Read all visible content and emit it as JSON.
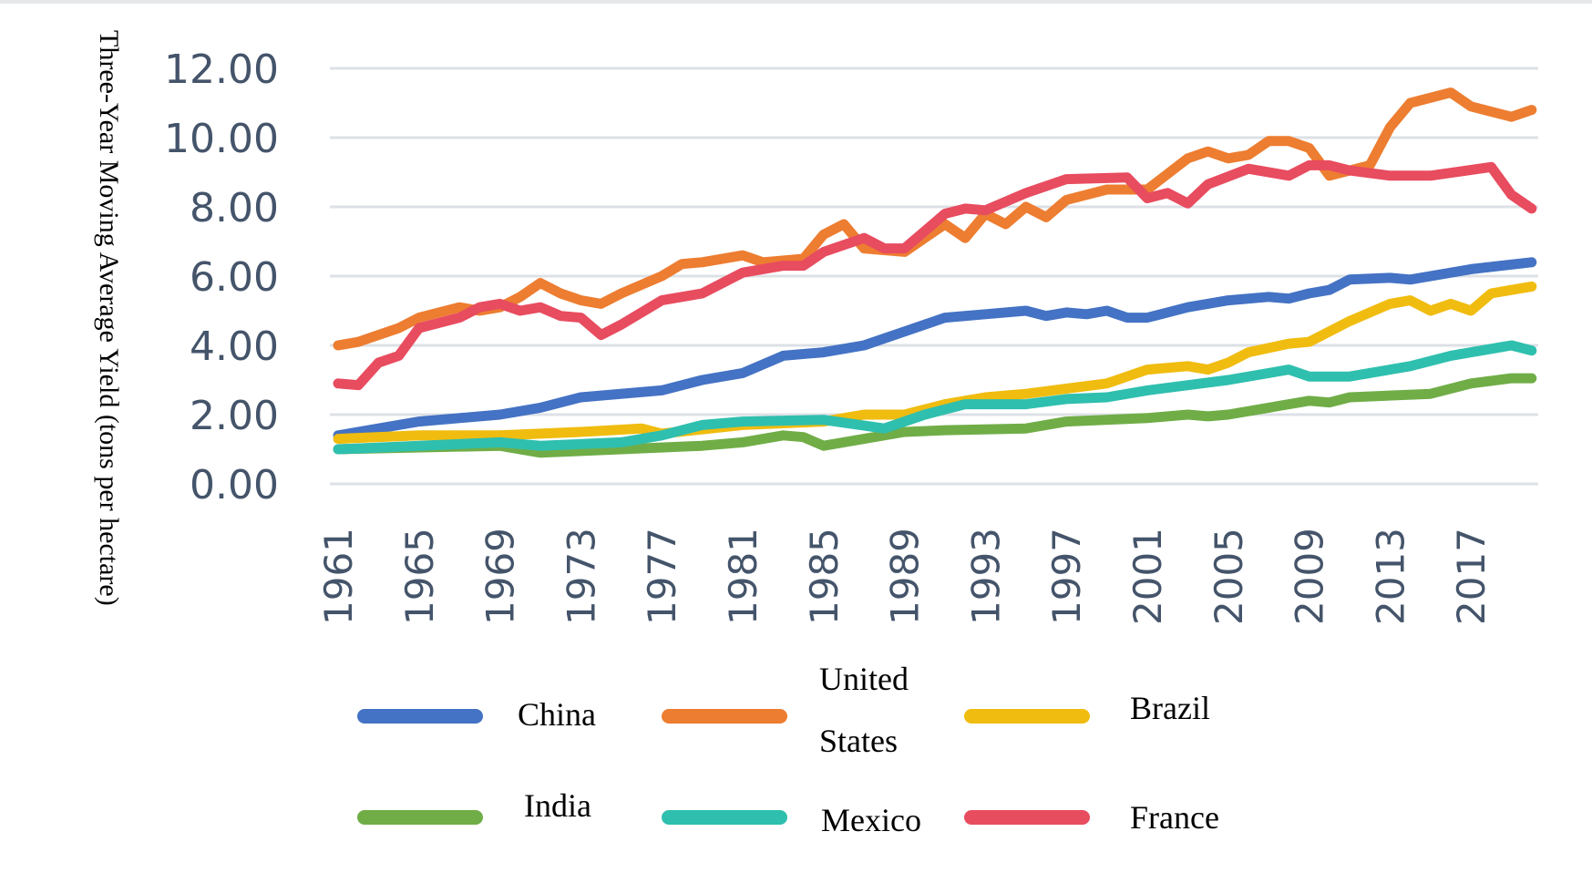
{
  "chart_data": {
    "type": "line",
    "title": "",
    "xlabel": "",
    "ylabel": "Three-Year Moving Average Yield (tons per hectare)",
    "ylim": [
      0,
      12
    ],
    "yticks": [
      "0.00",
      "2.00",
      "4.00",
      "6.00",
      "8.00",
      "10.00",
      "12.00"
    ],
    "xlim": [
      1961,
      2020
    ],
    "xticks": [
      "1961",
      "1965",
      "1969",
      "1973",
      "1977",
      "1981",
      "1985",
      "1989",
      "1993",
      "1997",
      "2001",
      "2005",
      "2009",
      "2013",
      "2017"
    ],
    "grid": true,
    "legend_placement": "bottom",
    "series": [
      {
        "name": "China",
        "color": "#4472c4",
        "points": [
          [
            1961,
            1.4
          ],
          [
            1965,
            1.8
          ],
          [
            1969,
            2.0
          ],
          [
            1971,
            2.2
          ],
          [
            1973,
            2.5
          ],
          [
            1977,
            2.7
          ],
          [
            1979,
            3.0
          ],
          [
            1981,
            3.2
          ],
          [
            1983,
            3.7
          ],
          [
            1985,
            3.8
          ],
          [
            1987,
            4.0
          ],
          [
            1989,
            4.4
          ],
          [
            1991,
            4.8
          ],
          [
            1993,
            4.9
          ],
          [
            1995,
            5.0
          ],
          [
            1996,
            4.85
          ],
          [
            1997,
            4.95
          ],
          [
            1998,
            4.9
          ],
          [
            1999,
            5.0
          ],
          [
            2000,
            4.8
          ],
          [
            2001,
            4.8
          ],
          [
            2003,
            5.1
          ],
          [
            2005,
            5.3
          ],
          [
            2007,
            5.4
          ],
          [
            2008,
            5.35
          ],
          [
            2009,
            5.5
          ],
          [
            2010,
            5.6
          ],
          [
            2011,
            5.9
          ],
          [
            2013,
            5.95
          ],
          [
            2014,
            5.9
          ],
          [
            2017,
            6.2
          ],
          [
            2020,
            6.4
          ]
        ]
      },
      {
        "name": "United States",
        "color": "#ed7d31",
        "points": [
          [
            1961,
            4.0
          ],
          [
            1962,
            4.1
          ],
          [
            1963,
            4.3
          ],
          [
            1964,
            4.5
          ],
          [
            1965,
            4.8
          ],
          [
            1967,
            5.1
          ],
          [
            1968,
            5.0
          ],
          [
            1969,
            5.1
          ],
          [
            1970,
            5.4
          ],
          [
            1971,
            5.8
          ],
          [
            1972,
            5.5
          ],
          [
            1973,
            5.3
          ],
          [
            1974,
            5.2
          ],
          [
            1975,
            5.5
          ],
          [
            1977,
            6.0
          ],
          [
            1978,
            6.35
          ],
          [
            1979,
            6.4
          ],
          [
            1981,
            6.6
          ],
          [
            1982,
            6.4
          ],
          [
            1984,
            6.5
          ],
          [
            1985,
            7.2
          ],
          [
            1986,
            7.5
          ],
          [
            1987,
            6.8
          ],
          [
            1989,
            6.7
          ],
          [
            1991,
            7.5
          ],
          [
            1992,
            7.1
          ],
          [
            1993,
            7.8
          ],
          [
            1994,
            7.5
          ],
          [
            1995,
            8.0
          ],
          [
            1996,
            7.7
          ],
          [
            1997,
            8.2
          ],
          [
            1999,
            8.5
          ],
          [
            2001,
            8.5
          ],
          [
            2003,
            9.4
          ],
          [
            2004,
            9.6
          ],
          [
            2005,
            9.4
          ],
          [
            2006,
            9.5
          ],
          [
            2007,
            9.9
          ],
          [
            2008,
            9.9
          ],
          [
            2009,
            9.7
          ],
          [
            2010,
            8.9
          ],
          [
            2012,
            9.2
          ],
          [
            2013,
            10.3
          ],
          [
            2014,
            11.0
          ],
          [
            2016,
            11.3
          ],
          [
            2017,
            10.9
          ],
          [
            2019,
            10.6
          ],
          [
            2020,
            10.8
          ]
        ]
      },
      {
        "name": "Brazil",
        "color": "#f0bc0f",
        "points": [
          [
            1961,
            1.3
          ],
          [
            1965,
            1.4
          ],
          [
            1969,
            1.4
          ],
          [
            1973,
            1.5
          ],
          [
            1976,
            1.6
          ],
          [
            1977,
            1.45
          ],
          [
            1981,
            1.7
          ],
          [
            1985,
            1.8
          ],
          [
            1987,
            2.0
          ],
          [
            1989,
            2.0
          ],
          [
            1991,
            2.3
          ],
          [
            1993,
            2.5
          ],
          [
            1995,
            2.6
          ],
          [
            1997,
            2.75
          ],
          [
            1999,
            2.9
          ],
          [
            2001,
            3.3
          ],
          [
            2003,
            3.4
          ],
          [
            2004,
            3.3
          ],
          [
            2005,
            3.5
          ],
          [
            2006,
            3.8
          ],
          [
            2008,
            4.05
          ],
          [
            2009,
            4.1
          ],
          [
            2011,
            4.7
          ],
          [
            2013,
            5.2
          ],
          [
            2014,
            5.3
          ],
          [
            2015,
            5.0
          ],
          [
            2016,
            5.2
          ],
          [
            2017,
            5.0
          ],
          [
            2018,
            5.5
          ],
          [
            2019,
            5.6
          ],
          [
            2020,
            5.7
          ]
        ]
      },
      {
        "name": "India",
        "color": "#70ad47",
        "points": [
          [
            1961,
            1.0
          ],
          [
            1969,
            1.1
          ],
          [
            1971,
            0.9
          ],
          [
            1975,
            1.0
          ],
          [
            1979,
            1.1
          ],
          [
            1981,
            1.2
          ],
          [
            1983,
            1.4
          ],
          [
            1984,
            1.35
          ],
          [
            1985,
            1.1
          ],
          [
            1987,
            1.3
          ],
          [
            1989,
            1.5
          ],
          [
            1991,
            1.55
          ],
          [
            1995,
            1.6
          ],
          [
            1997,
            1.8
          ],
          [
            2001,
            1.9
          ],
          [
            2003,
            2.0
          ],
          [
            2004,
            1.95
          ],
          [
            2005,
            2.0
          ],
          [
            2007,
            2.2
          ],
          [
            2009,
            2.4
          ],
          [
            2010,
            2.35
          ],
          [
            2011,
            2.5
          ],
          [
            2015,
            2.6
          ],
          [
            2017,
            2.9
          ],
          [
            2019,
            3.05
          ],
          [
            2020,
            3.05
          ]
        ]
      },
      {
        "name": "Mexico",
        "color": "#2fbfae",
        "points": [
          [
            1961,
            1.0
          ],
          [
            1965,
            1.1
          ],
          [
            1969,
            1.2
          ],
          [
            1971,
            1.1
          ],
          [
            1975,
            1.2
          ],
          [
            1977,
            1.4
          ],
          [
            1979,
            1.7
          ],
          [
            1981,
            1.8
          ],
          [
            1985,
            1.85
          ],
          [
            1988,
            1.6
          ],
          [
            1990,
            2.0
          ],
          [
            1992,
            2.3
          ],
          [
            1995,
            2.3
          ],
          [
            1997,
            2.45
          ],
          [
            1999,
            2.5
          ],
          [
            2001,
            2.7
          ],
          [
            2005,
            3.0
          ],
          [
            2008,
            3.3
          ],
          [
            2009,
            3.1
          ],
          [
            2011,
            3.1
          ],
          [
            2014,
            3.4
          ],
          [
            2016,
            3.7
          ],
          [
            2019,
            4.0
          ],
          [
            2020,
            3.85
          ]
        ]
      },
      {
        "name": "France",
        "color": "#e84c5f",
        "points": [
          [
            1961,
            2.9
          ],
          [
            1962,
            2.85
          ],
          [
            1963,
            3.5
          ],
          [
            1964,
            3.7
          ],
          [
            1965,
            4.5
          ],
          [
            1967,
            4.8
          ],
          [
            1968,
            5.1
          ],
          [
            1969,
            5.2
          ],
          [
            1970,
            5.0
          ],
          [
            1971,
            5.1
          ],
          [
            1972,
            4.85
          ],
          [
            1973,
            4.8
          ],
          [
            1974,
            4.3
          ],
          [
            1975,
            4.6
          ],
          [
            1977,
            5.3
          ],
          [
            1979,
            5.5
          ],
          [
            1981,
            6.1
          ],
          [
            1983,
            6.3
          ],
          [
            1984,
            6.3
          ],
          [
            1985,
            6.7
          ],
          [
            1987,
            7.1
          ],
          [
            1988,
            6.8
          ],
          [
            1989,
            6.8
          ],
          [
            1991,
            7.8
          ],
          [
            1992,
            7.95
          ],
          [
            1993,
            7.9
          ],
          [
            1995,
            8.4
          ],
          [
            1997,
            8.8
          ],
          [
            2000,
            8.85
          ],
          [
            2001,
            8.25
          ],
          [
            2002,
            8.4
          ],
          [
            2003,
            8.1
          ],
          [
            2004,
            8.65
          ],
          [
            2006,
            9.1
          ],
          [
            2008,
            8.9
          ],
          [
            2009,
            9.2
          ],
          [
            2010,
            9.2
          ],
          [
            2011,
            9.05
          ],
          [
            2013,
            8.9
          ],
          [
            2015,
            8.9
          ],
          [
            2018,
            9.15
          ],
          [
            2019,
            8.35
          ],
          [
            2020,
            7.95
          ]
        ]
      }
    ]
  },
  "legend": {
    "china": "China",
    "us_line1": "United",
    "us_line2": "States",
    "brazil": "Brazil",
    "india": "India",
    "mexico": "Mexico",
    "france": "France"
  }
}
